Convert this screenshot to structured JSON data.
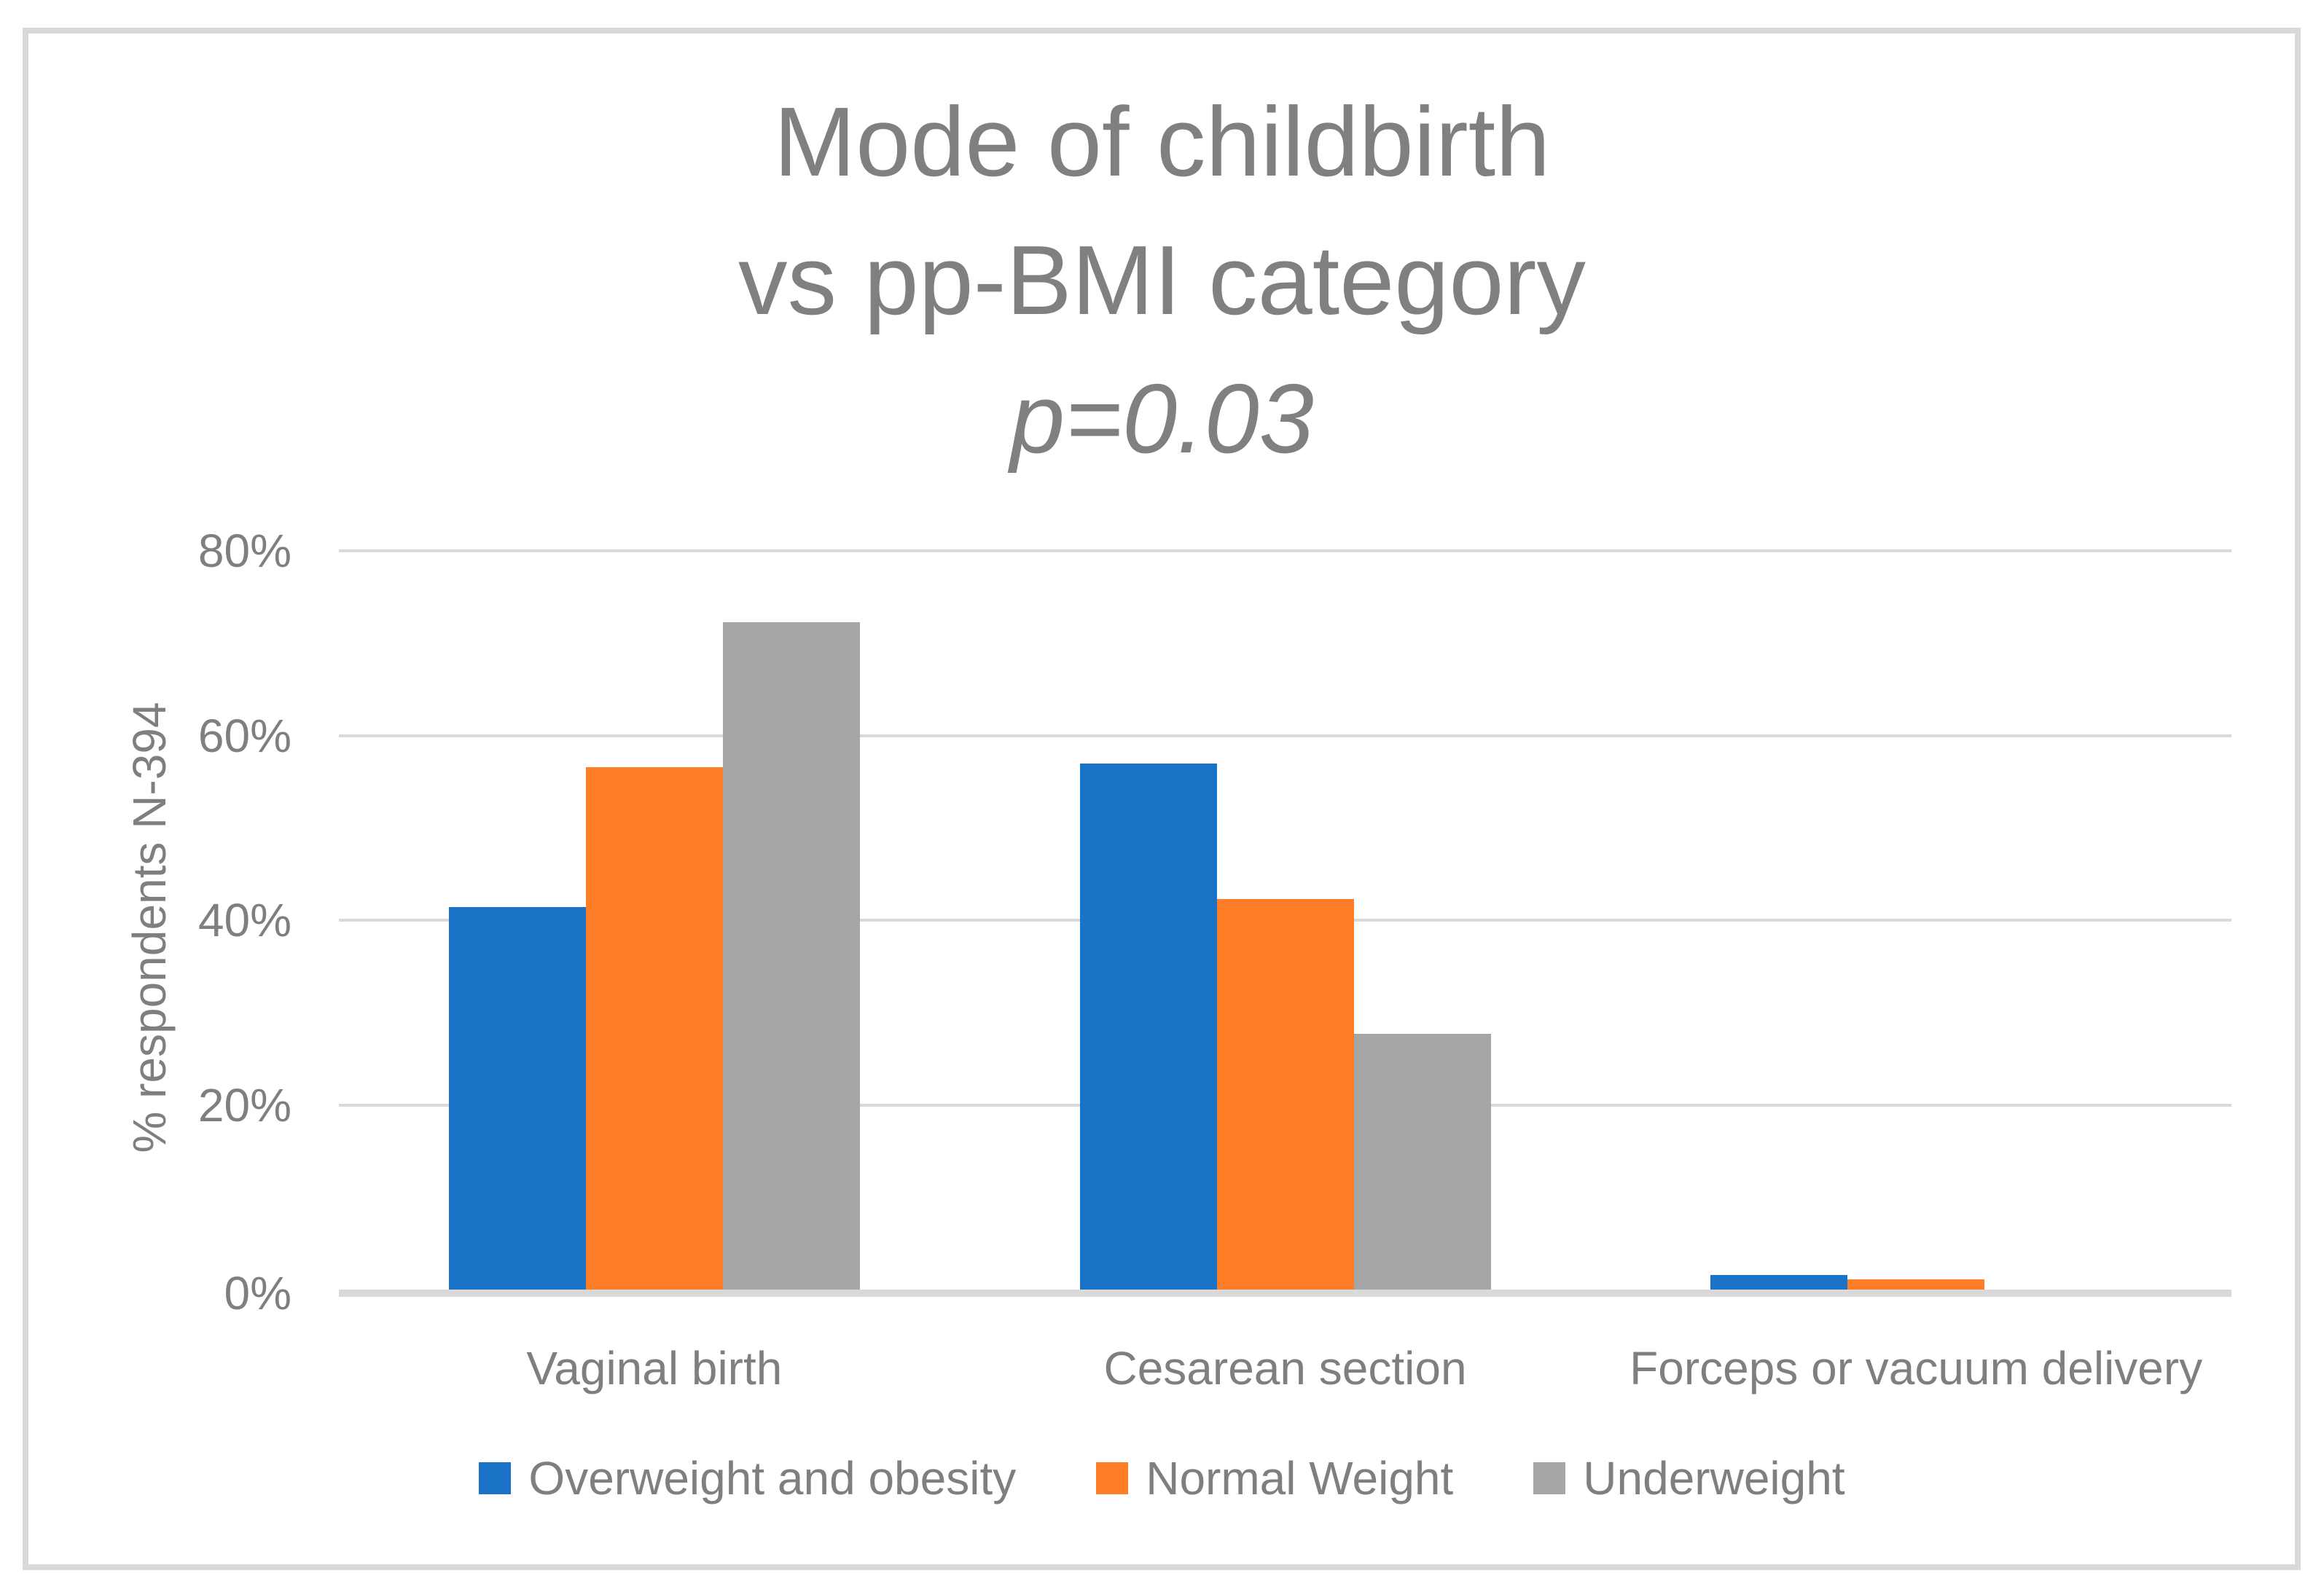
{
  "chart_data": {
    "type": "bar",
    "title_lines": [
      "Mode of childbirth",
      "vs pp-BMI category",
      "p=0.03"
    ],
    "ylabel": "% respondents N-394",
    "xlabel": "",
    "categories": [
      "Vaginal birth",
      "Cesarean section",
      "Forceps or vacuum delivery"
    ],
    "series": [
      {
        "name": "Overweight and obesity",
        "color": "#1B73C8",
        "values": [
          41.4,
          57.0,
          1.6
        ]
      },
      {
        "name": "Normal Weight",
        "color": "#FD7E27",
        "values": [
          56.6,
          42.3,
          1.1
        ]
      },
      {
        "name": "Underweight",
        "color": "#A6A6A6",
        "values": [
          72.3,
          27.7,
          0.0
        ]
      }
    ],
    "ylim": [
      0,
      80
    ],
    "yticks": [
      {
        "value": 0,
        "label": "0%"
      },
      {
        "value": 20,
        "label": "20%"
      },
      {
        "value": 40,
        "label": "40%"
      },
      {
        "value": 60,
        "label": "60%"
      },
      {
        "value": 80,
        "label": "80%"
      }
    ],
    "grid": true,
    "legend_position": "bottom"
  },
  "colors": {
    "title": "#808080",
    "axis_text": "#7F7F7F",
    "grid": "#D9D9D9",
    "frame": "#D9D9D9",
    "background": "#FFFFFF"
  }
}
